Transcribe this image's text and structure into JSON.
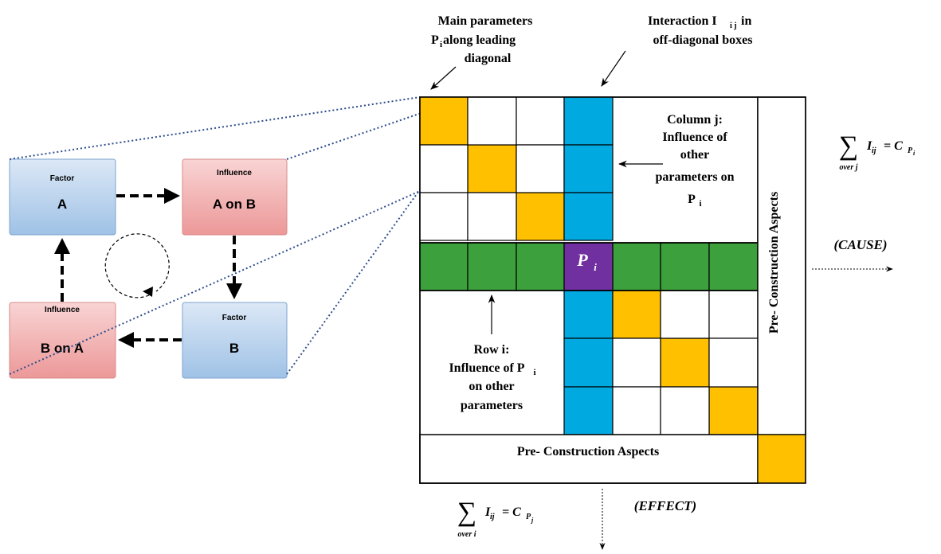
{
  "colors": {
    "diagonal": "#FFC000",
    "column": "#00A9E0",
    "row": "#3CA03C",
    "center": "#7030A0",
    "factor_fill_top": "#DCE8F6",
    "factor_fill_bottom": "#9FC2E6",
    "influence_fill_top": "#F9D4D4",
    "influence_fill_bottom": "#EC9898",
    "dotted_line": "#2E4D8C"
  },
  "loop": {
    "factor_a": {
      "small": "Factor",
      "big": "A"
    },
    "influence_ab": {
      "small": "Influence",
      "big": "A on B"
    },
    "factor_b": {
      "small": "Factor",
      "big": "B"
    },
    "influence_ba": {
      "small": "Influence",
      "big": "B on A"
    },
    "arrow_icon": "dashed-arrow",
    "cycle_icon": "circular-arrow"
  },
  "matrix": {
    "center_label": "P",
    "center_sub": "i",
    "bottom_band_label": "Pre- Construction Aspects",
    "right_band_label": "Pre- Construction Aspects",
    "column_note_lines": [
      "Column j:",
      "Influence of",
      "other",
      "parameters on",
      "P"
    ],
    "column_note_sub": "i",
    "row_note_line1": "Row i:",
    "row_note_line2_main": "Influence of P",
    "row_note_line2_sub": "i",
    "row_note_lines_rest": [
      "on other",
      "parameters"
    ]
  },
  "annotations": {
    "main_params_line1": "Main parameters",
    "main_params_line2_pre": "P",
    "main_params_line2_sub": "i",
    "main_params_line2_post": " along leading",
    "main_params_line3": "diagonal",
    "interaction_line1_pre": "Interaction I",
    "interaction_line1_sub": "i j",
    "interaction_line1_post": " in",
    "interaction_line2": "off-diagonal boxes",
    "cause": "(CAUSE)",
    "effect": "(EFFECT)"
  },
  "formulas": {
    "row_sum": {
      "sigma": "∑",
      "under": "over j",
      "term": "I",
      "term_sub": "ij",
      "eq": "= C",
      "result_sub": "P",
      "result_subsub": "i"
    },
    "col_sum": {
      "sigma": "∑",
      "under": "over i",
      "term": "I",
      "term_sub": "ij",
      "eq": "= C",
      "result_sub": "P",
      "result_subsub": "j"
    }
  }
}
